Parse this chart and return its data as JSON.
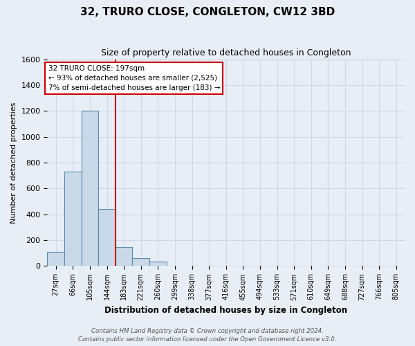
{
  "title": "32, TRURO CLOSE, CONGLETON, CW12 3BD",
  "subtitle": "Size of property relative to detached houses in Congleton",
  "xlabel": "Distribution of detached houses by size in Congleton",
  "ylabel": "Number of detached properties",
  "bin_labels": [
    "27sqm",
    "66sqm",
    "105sqm",
    "144sqm",
    "183sqm",
    "221sqm",
    "260sqm",
    "299sqm",
    "338sqm",
    "377sqm",
    "416sqm",
    "455sqm",
    "494sqm",
    "533sqm",
    "571sqm",
    "610sqm",
    "649sqm",
    "688sqm",
    "727sqm",
    "766sqm",
    "805sqm"
  ],
  "bar_heights": [
    110,
    730,
    1200,
    440,
    145,
    60,
    35,
    0,
    0,
    0,
    0,
    0,
    0,
    0,
    0,
    0,
    0,
    0,
    0,
    0,
    0
  ],
  "bar_color": "#c9d9e8",
  "bar_edge_color": "#5a8ab0",
  "annotation_text_line1": "32 TRURO CLOSE: 197sqm",
  "annotation_text_line2": "← 93% of detached houses are smaller (2,525)",
  "annotation_text_line3": "7% of semi-detached houses are larger (183) →",
  "annotation_box_color": "#ffffff",
  "annotation_box_edge": "#cc0000",
  "vline_color": "#cc0000",
  "ylim": [
    0,
    1600
  ],
  "yticks": [
    0,
    200,
    400,
    600,
    800,
    1000,
    1200,
    1400,
    1600
  ],
  "grid_color": "#d0d8e8",
  "background_color": "#e8eef5",
  "footer_line1": "Contains HM Land Registry data © Crown copyright and database right 2024.",
  "footer_line2": "Contains public sector information licensed under the Open Government Licence v3.0."
}
